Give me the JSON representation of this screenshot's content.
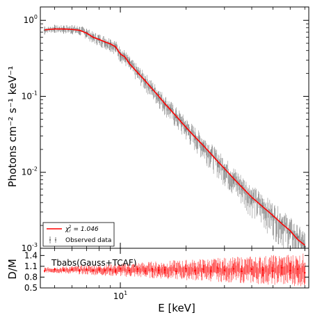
{
  "chart_data": [
    {
      "type": "line",
      "panel": "spectrum",
      "xlabel": "E [keV]",
      "ylabel": "Photons cm⁻² s⁻¹ keV⁻¹",
      "xscale": "log",
      "yscale": "log",
      "xlim": [
        4.3,
        73
      ],
      "ylim": [
        0.001,
        1.5
      ],
      "ytick_labels": [
        {
          "value": 1,
          "base": "10",
          "exp": "0"
        },
        {
          "value": 0.1,
          "base": "10",
          "exp": "-1"
        },
        {
          "value": 0.01,
          "base": "10",
          "exp": "-2"
        },
        {
          "value": 0.001,
          "base": "10",
          "exp": "-3"
        }
      ],
      "series": [
        {
          "name": "χ²_r = 1.046",
          "legend_symbol": "χ",
          "legend_sub": "r",
          "legend_sup": "2",
          "legend_value": " = 1.046",
          "style": "line",
          "color": "#ff0000",
          "x": [
            4.5,
            5.0,
            5.5,
            6.0,
            6.5,
            7.0,
            7.5,
            8.0,
            8.5,
            9.0,
            9.5,
            10.0,
            10.5,
            11,
            12,
            13,
            14,
            15,
            16,
            17,
            18,
            19,
            20,
            22,
            24,
            26,
            28,
            30,
            33,
            36,
            40,
            45,
            50,
            55,
            60,
            65,
            70
          ],
          "y": [
            0.75,
            0.77,
            0.77,
            0.76,
            0.74,
            0.68,
            0.6,
            0.56,
            0.52,
            0.49,
            0.45,
            0.36,
            0.33,
            0.27,
            0.205,
            0.16,
            0.125,
            0.1,
            0.08,
            0.066,
            0.055,
            0.046,
            0.039,
            0.029,
            0.0225,
            0.0175,
            0.0138,
            0.0112,
            0.0083,
            0.0064,
            0.0047,
            0.0035,
            0.0027,
            0.0021,
            0.0017,
            0.0013,
            0.0011
          ]
        },
        {
          "name": "Observed data",
          "style": "errorbar",
          "color": "#7a7a7a",
          "x": [
            4.5,
            5.0,
            5.5,
            6.0,
            6.5,
            7.0,
            7.5,
            8.0,
            8.5,
            9.0,
            9.5,
            10.0,
            10.5,
            11,
            12,
            13,
            14,
            15,
            16,
            17,
            18,
            19,
            20,
            22,
            24,
            26,
            28,
            30,
            33,
            36,
            40,
            45,
            50,
            55,
            60,
            65,
            70
          ],
          "y": [
            0.74,
            0.78,
            0.76,
            0.77,
            0.73,
            0.69,
            0.59,
            0.57,
            0.51,
            0.5,
            0.44,
            0.37,
            0.32,
            0.28,
            0.2,
            0.165,
            0.12,
            0.105,
            0.078,
            0.068,
            0.053,
            0.048,
            0.037,
            0.03,
            0.022,
            0.018,
            0.0132,
            0.0115,
            0.008,
            0.0066,
            0.0045,
            0.0036,
            0.0026,
            0.0022,
            0.0016,
            0.0014,
            0.00105
          ]
        }
      ]
    },
    {
      "type": "scatter",
      "panel": "ratio",
      "xlabel": "E [keV]",
      "ylabel": "D/M",
      "xscale": "log",
      "xlim": [
        4.3,
        73
      ],
      "ylim": [
        0.5,
        1.6
      ],
      "xticks": [
        {
          "value": 10,
          "base": "10",
          "exp": "1"
        }
      ],
      "yticks": [
        0.5,
        0.8,
        1.1,
        1.4
      ],
      "ytick_labels": [
        "0.5",
        "0.8",
        "1.1",
        "1.4"
      ],
      "annotation": "Tbabs(Gauss+TCAF)",
      "series": [
        {
          "name": "ratio",
          "color": "#ff0000",
          "x": [
            4.5,
            5.0,
            5.5,
            6.0,
            6.5,
            7.0,
            7.5,
            8.0,
            8.5,
            9.0,
            9.5,
            10.0,
            11,
            12,
            13,
            14,
            15,
            16,
            18,
            20,
            22,
            24,
            26,
            28,
            30,
            33,
            36,
            40,
            45,
            50,
            55,
            60,
            65,
            70
          ],
          "y": [
            0.97,
            1.02,
            0.99,
            1.01,
            0.98,
            1.02,
            0.98,
            1.01,
            0.99,
            1.02,
            0.97,
            1.03,
            0.98,
            1.02,
            0.97,
            1.03,
            0.99,
            1.0,
            0.96,
            1.04,
            0.98,
            1.02,
            0.97,
            1.05,
            0.99,
            1.03,
            0.96,
            1.02,
            1.0,
            0.97,
            1.06,
            0.98,
            1.02,
            0.92
          ],
          "err": [
            0.04,
            0.04,
            0.04,
            0.04,
            0.05,
            0.05,
            0.05,
            0.05,
            0.06,
            0.06,
            0.06,
            0.07,
            0.07,
            0.08,
            0.08,
            0.09,
            0.09,
            0.1,
            0.1,
            0.11,
            0.12,
            0.12,
            0.13,
            0.14,
            0.14,
            0.15,
            0.16,
            0.17,
            0.18,
            0.19,
            0.2,
            0.22,
            0.24,
            0.28
          ]
        }
      ]
    }
  ]
}
